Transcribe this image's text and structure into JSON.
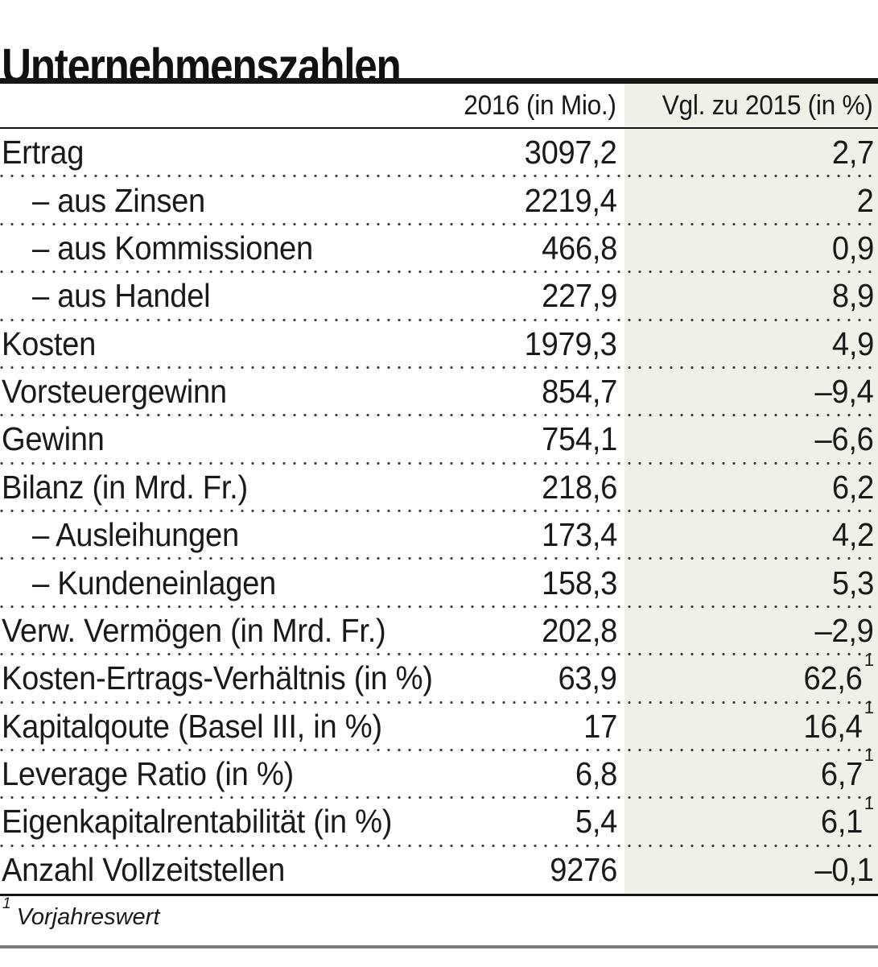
{
  "chart_data": {
    "type": "table",
    "title": "Unternehmenszahlen",
    "columns": {
      "value": "2016 (in Mio.)",
      "compare": "Vgl. zu 2015 (in %)"
    },
    "rows": [
      {
        "label": "Ertrag",
        "value": "3097,2",
        "compare": "2,7"
      },
      {
        "label": "– aus Zinsen",
        "indent": true,
        "value": "2219,4",
        "compare": "2"
      },
      {
        "label": "– aus Kommissionen",
        "indent": true,
        "value": "466,8",
        "compare": "0,9"
      },
      {
        "label": "– aus Handel",
        "indent": true,
        "value": "227,9",
        "compare": "8,9"
      },
      {
        "label": "Kosten",
        "value": "1979,3",
        "compare": "4,9"
      },
      {
        "label": "Vorsteuergewinn",
        "value": "854,7",
        "compare": "–9,4"
      },
      {
        "label": "Gewinn",
        "value": "754,1",
        "compare": "–6,6"
      },
      {
        "label": "Bilanz (in Mrd. Fr.)",
        "value": "218,6",
        "compare": "6,2"
      },
      {
        "label": "– Ausleihungen",
        "indent": true,
        "value": "173,4",
        "compare": "4,2"
      },
      {
        "label": "– Kundeneinlagen",
        "indent": true,
        "value": "158,3",
        "compare": "5,3"
      },
      {
        "label": "Verw. Vermögen (in Mrd. Fr.)",
        "value": "202,8",
        "compare": "–2,9"
      },
      {
        "label": "Kosten-Ertrags-Verhältnis (in %)",
        "value": "63,9",
        "compare": "62,6",
        "compare_footnote": true
      },
      {
        "label": "Kapitalqoute (Basel III, in %)",
        "value": "17",
        "compare": "16,4",
        "compare_footnote": true
      },
      {
        "label": "Leverage Ratio (in %)",
        "value": "6,8",
        "compare": "6,7",
        "compare_footnote": true
      },
      {
        "label": "Eigenkapitalrentabilität (in %)",
        "value": "5,4",
        "compare": "6,1",
        "compare_footnote": true
      },
      {
        "label": "Anzahl Vollzeitstellen",
        "value": "9276",
        "compare": "–0,1"
      }
    ],
    "footnote": {
      "marker": "1",
      "text": "Vorjahreswert"
    }
  },
  "colors": {
    "column_shade": "#f0efe8",
    "text": "#1a1a1a",
    "rule_dark": "#161616",
    "rule_gray": "#7d7d7d",
    "dots": "#3b3b3b"
  }
}
